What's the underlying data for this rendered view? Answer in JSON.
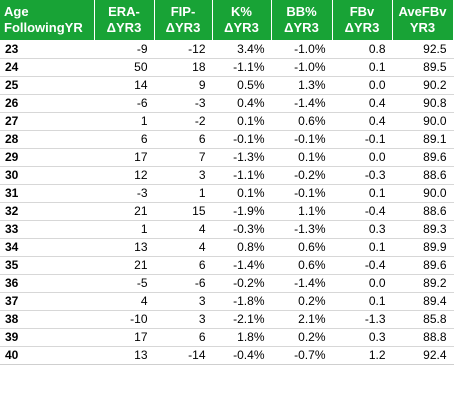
{
  "header": {
    "age": [
      "Age",
      "FollowingYR"
    ],
    "era": [
      "ERA-",
      "ΔYR3"
    ],
    "fip": [
      "FIP-",
      "ΔYR3"
    ],
    "k": [
      "K%",
      "ΔYR3"
    ],
    "bb": [
      "BB%",
      "ΔYR3"
    ],
    "fbv": [
      "FBv",
      "ΔYR3"
    ],
    "avefbv": [
      "AveFBv",
      "YR3"
    ]
  },
  "colors": {
    "header_bg": "#18a336",
    "header_text": "#ffffff",
    "row_divider": "#d7d7d7"
  },
  "rows": [
    {
      "age": "23",
      "era": "-9",
      "fip": "-12",
      "k": "3.4%",
      "bb": "-1.0%",
      "fbv": "0.8",
      "avefbv": "92.5"
    },
    {
      "age": "24",
      "era": "50",
      "fip": "18",
      "k": "-1.1%",
      "bb": "-1.0%",
      "fbv": "0.1",
      "avefbv": "89.5"
    },
    {
      "age": "25",
      "era": "14",
      "fip": "9",
      "k": "0.5%",
      "bb": "1.3%",
      "fbv": "0.0",
      "avefbv": "90.2"
    },
    {
      "age": "26",
      "era": "-6",
      "fip": "-3",
      "k": "0.4%",
      "bb": "-1.4%",
      "fbv": "0.4",
      "avefbv": "90.8"
    },
    {
      "age": "27",
      "era": "1",
      "fip": "-2",
      "k": "0.1%",
      "bb": "0.6%",
      "fbv": "0.4",
      "avefbv": "90.0"
    },
    {
      "age": "28",
      "era": "6",
      "fip": "6",
      "k": "-0.1%",
      "bb": "-0.1%",
      "fbv": "-0.1",
      "avefbv": "89.1"
    },
    {
      "age": "29",
      "era": "17",
      "fip": "7",
      "k": "-1.3%",
      "bb": "0.1%",
      "fbv": "0.0",
      "avefbv": "89.6"
    },
    {
      "age": "30",
      "era": "12",
      "fip": "3",
      "k": "-1.1%",
      "bb": "-0.2%",
      "fbv": "-0.3",
      "avefbv": "88.6"
    },
    {
      "age": "31",
      "era": "-3",
      "fip": "1",
      "k": "0.1%",
      "bb": "-0.1%",
      "fbv": "0.1",
      "avefbv": "90.0"
    },
    {
      "age": "32",
      "era": "21",
      "fip": "15",
      "k": "-1.9%",
      "bb": "1.1%",
      "fbv": "-0.4",
      "avefbv": "88.6"
    },
    {
      "age": "33",
      "era": "1",
      "fip": "4",
      "k": "-0.3%",
      "bb": "-1.3%",
      "fbv": "0.3",
      "avefbv": "89.3"
    },
    {
      "age": "34",
      "era": "13",
      "fip": "4",
      "k": "0.8%",
      "bb": "0.6%",
      "fbv": "0.1",
      "avefbv": "89.9"
    },
    {
      "age": "35",
      "era": "21",
      "fip": "6",
      "k": "-1.4%",
      "bb": "0.6%",
      "fbv": "-0.4",
      "avefbv": "89.6"
    },
    {
      "age": "36",
      "era": "-5",
      "fip": "-6",
      "k": "-0.2%",
      "bb": "-1.4%",
      "fbv": "0.0",
      "avefbv": "89.2"
    },
    {
      "age": "37",
      "era": "4",
      "fip": "3",
      "k": "-1.8%",
      "bb": "0.2%",
      "fbv": "0.1",
      "avefbv": "89.4"
    },
    {
      "age": "38",
      "era": "-10",
      "fip": "3",
      "k": "-2.1%",
      "bb": "2.1%",
      "fbv": "-1.3",
      "avefbv": "85.8"
    },
    {
      "age": "39",
      "era": "17",
      "fip": "6",
      "k": "1.8%",
      "bb": "0.2%",
      "fbv": "0.3",
      "avefbv": "88.8"
    },
    {
      "age": "40",
      "era": "13",
      "fip": "-14",
      "k": "-0.4%",
      "bb": "-0.7%",
      "fbv": "1.2",
      "avefbv": "92.4"
    }
  ]
}
